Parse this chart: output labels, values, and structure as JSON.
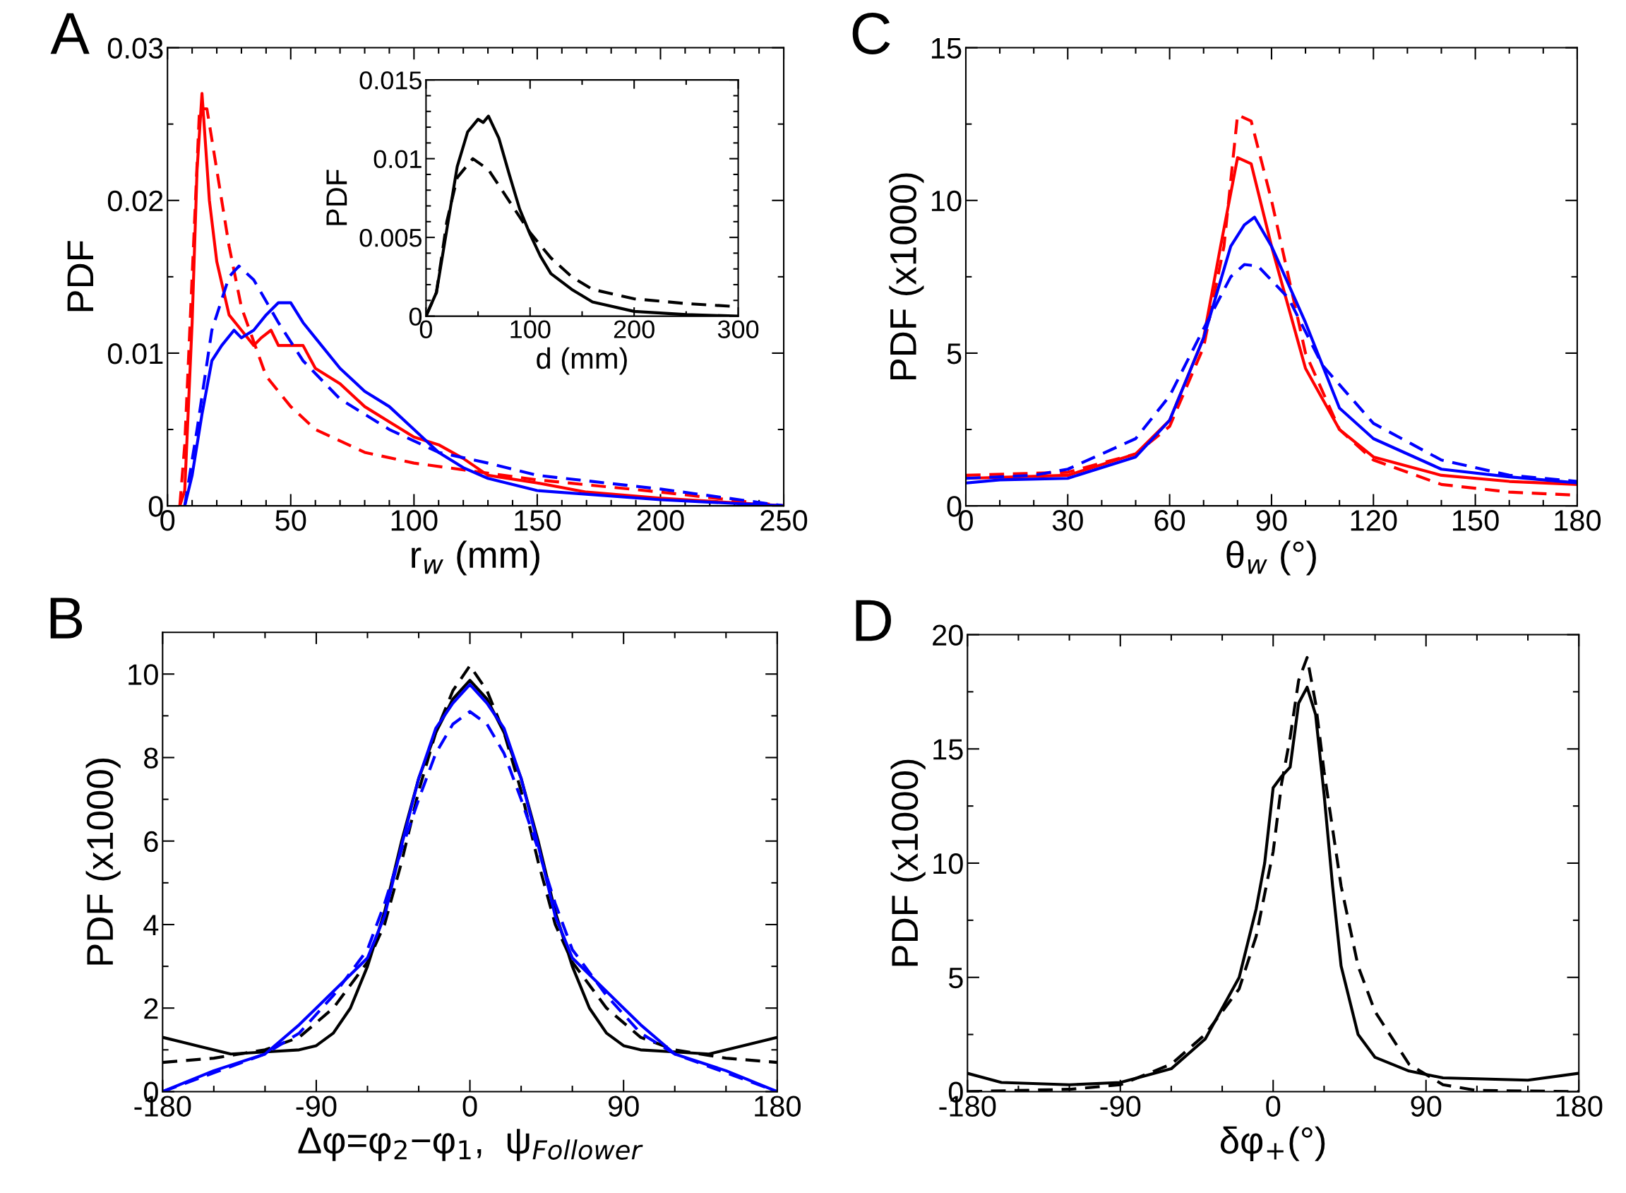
{
  "chart_data": [
    {
      "type": "line",
      "xlabel": "r$_{w}$ (mm)",
      "ylabel": "PDF",
      "annotations": [
        "A"
      ],
      "xlim": [
        0,
        250
      ],
      "ylim": [
        0,
        0.03
      ],
      "xticks": [
        0,
        {
          "value": 10,
          "label": null
        },
        {
          "value": 20,
          "label": null
        },
        {
          "value": 30,
          "label": null
        },
        {
          "value": 40,
          "label": null
        },
        50,
        {
          "value": 60,
          "label": null
        },
        {
          "value": 70,
          "label": null
        },
        {
          "value": 80,
          "label": null
        },
        {
          "value": 90,
          "label": null
        },
        100,
        {
          "value": 110,
          "label": null
        },
        {
          "value": 120,
          "label": null
        },
        {
          "value": 130,
          "label": null
        },
        {
          "value": 140,
          "label": null
        },
        150,
        {
          "value": 160,
          "label": null
        },
        {
          "value": 170,
          "label": null
        },
        {
          "value": 180,
          "label": null
        },
        {
          "value": 190,
          "label": null
        },
        200,
        {
          "value": 210,
          "label": null
        },
        {
          "value": 220,
          "label": null
        },
        {
          "value": 230,
          "label": null
        },
        {
          "value": 240,
          "label": null
        },
        250
      ],
      "yticks": [
        0,
        {
          "value": 0.005,
          "label": null
        },
        0.01,
        {
          "value": 0.015,
          "label": null
        },
        0.02,
        {
          "value": 0.025,
          "label": null
        },
        0.03
      ],
      "series": [
        {
          "color": "#ff0000",
          "line_style": "solid",
          "x": [
            5,
            7,
            10,
            12,
            14,
            17,
            20,
            25,
            30,
            35,
            38,
            42,
            45,
            55,
            60,
            70,
            80,
            90,
            100,
            110,
            120,
            130,
            150,
            170,
            200,
            250
          ],
          "values": [
            0,
            0.001,
            0.012,
            0.022,
            0.027,
            0.02,
            0.016,
            0.0125,
            0.0115,
            0.0105,
            0.011,
            0.0115,
            0.0105,
            0.0105,
            0.009,
            0.008,
            0.0065,
            0.0055,
            0.0045,
            0.004,
            0.0031,
            0.002,
            0.0015,
            0.0009,
            0.0005,
            0
          ]
        },
        {
          "color": "#ff0000",
          "line_style": "dashed",
          "x": [
            5,
            7,
            10,
            13,
            16,
            20,
            25,
            30,
            40,
            50,
            60,
            80,
            100,
            150,
            200,
            250
          ],
          "values": [
            0,
            0.004,
            0.015,
            0.026,
            0.026,
            0.022,
            0.017,
            0.013,
            0.0085,
            0.0065,
            0.005,
            0.0035,
            0.0028,
            0.0017,
            0.0009,
            0
          ]
        },
        {
          "color": "#0000ff",
          "line_style": "solid",
          "x": [
            7,
            10,
            14,
            18,
            22,
            27,
            30,
            35,
            40,
            45,
            50,
            55,
            60,
            70,
            80,
            90,
            100,
            110,
            120,
            130,
            150,
            200,
            250
          ],
          "values": [
            0,
            0.002,
            0.006,
            0.0095,
            0.0105,
            0.0115,
            0.011,
            0.0115,
            0.0125,
            0.0133,
            0.0133,
            0.012,
            0.011,
            0.009,
            0.0075,
            0.0065,
            0.005,
            0.0035,
            0.0025,
            0.0018,
            0.001,
            0.0004,
            0
          ]
        },
        {
          "color": "#0000ff",
          "line_style": "dashed",
          "x": [
            7,
            12,
            18,
            25,
            29,
            35,
            45,
            55,
            70,
            90,
            110,
            130,
            150,
            200,
            250
          ],
          "values": [
            0,
            0.005,
            0.0115,
            0.015,
            0.0157,
            0.0148,
            0.012,
            0.0095,
            0.007,
            0.005,
            0.0035,
            0.0028,
            0.002,
            0.0011,
            0
          ]
        }
      ]
    },
    {
      "type": "line",
      "xlabel": "d (mm)",
      "ylabel": "PDF",
      "xlim": [
        0,
        300
      ],
      "ylim": [
        0,
        0.015
      ],
      "xticks": [
        0,
        {
          "value": 50,
          "label": null
        },
        100,
        {
          "value": 150,
          "label": null
        },
        200,
        {
          "value": 250,
          "label": null
        },
        300
      ],
      "yticks": [
        0,
        {
          "value": 0.001,
          "label": null
        },
        {
          "value": 0.002,
          "label": null
        },
        {
          "value": 0.003,
          "label": null
        },
        {
          "value": 0.004,
          "label": null
        },
        0.005,
        {
          "value": 0.006,
          "label": null
        },
        {
          "value": 0.007,
          "label": null
        },
        {
          "value": 0.008,
          "label": null
        },
        {
          "value": 0.009,
          "label": null
        },
        0.01,
        {
          "value": 0.011,
          "label": null
        },
        {
          "value": 0.012,
          "label": null
        },
        {
          "value": 0.013,
          "label": null
        },
        {
          "value": 0.014,
          "label": null
        },
        0.015
      ],
      "series": [
        {
          "color": "#000000",
          "line_style": "solid",
          "x": [
            0,
            10,
            20,
            30,
            40,
            50,
            55,
            60,
            70,
            80,
            90,
            100,
            110,
            120,
            140,
            160,
            200,
            250,
            300
          ],
          "values": [
            0,
            0.0015,
            0.0055,
            0.0095,
            0.0117,
            0.0125,
            0.0123,
            0.0127,
            0.0113,
            0.009,
            0.0068,
            0.0052,
            0.0038,
            0.0027,
            0.0017,
            0.0009,
            0.0003,
            0.0001,
            0
          ]
        },
        {
          "color": "#000000",
          "line_style": "dashed",
          "x": [
            0,
            10,
            20,
            30,
            45,
            60,
            80,
            100,
            120,
            140,
            160,
            200,
            250,
            300
          ],
          "values": [
            0,
            0.0015,
            0.006,
            0.0088,
            0.01,
            0.0093,
            0.0073,
            0.0053,
            0.0037,
            0.0025,
            0.0017,
            0.0011,
            0.0008,
            0.0006
          ]
        }
      ]
    },
    {
      "type": "line",
      "xlabel": "Δφ=φ$_{2}$−φ$_{1}$,  ψ$_{Follower}$",
      "ylabel": "PDF (x1000)",
      "annotations": [
        "B"
      ],
      "xlim": [
        -180,
        180
      ],
      "ylim": [
        0,
        11
      ],
      "xticks": [
        -180,
        {
          "value": -150,
          "label": null
        },
        {
          "value": -120,
          "label": null
        },
        -90,
        {
          "value": -60,
          "label": null
        },
        {
          "value": -30,
          "label": null
        },
        0,
        {
          "value": 30,
          "label": null
        },
        {
          "value": 60,
          "label": null
        },
        90,
        {
          "value": 120,
          "label": null
        },
        {
          "value": 150,
          "label": null
        },
        180
      ],
      "yticks": [
        0,
        {
          "value": 1,
          "label": null
        },
        2,
        {
          "value": 3,
          "label": null
        },
        4,
        {
          "value": 5,
          "label": null
        },
        6,
        {
          "value": 7,
          "label": null
        },
        8,
        {
          "value": 9,
          "label": null
        },
        10
      ],
      "series": [
        {
          "color": "#000000",
          "line_style": "solid",
          "x": [
            -180,
            -160,
            -140,
            -120,
            -100,
            -90,
            -80,
            -70,
            -60,
            -50,
            -40,
            -30,
            -20,
            -10,
            0,
            10,
            20,
            30,
            40,
            50,
            60,
            70,
            80,
            90,
            100,
            120,
            140,
            160,
            180
          ],
          "values": [
            1.3,
            1.1,
            0.9,
            0.95,
            1.0,
            1.1,
            1.4,
            2.0,
            3.0,
            4.3,
            6.0,
            7.5,
            8.6,
            9.4,
            9.85,
            9.4,
            8.6,
            7.5,
            6.0,
            4.3,
            3.0,
            2.0,
            1.4,
            1.1,
            1.0,
            0.95,
            0.9,
            1.1,
            1.3
          ]
        },
        {
          "color": "#000000",
          "line_style": "dashed",
          "x": [
            -180,
            -150,
            -120,
            -100,
            -80,
            -60,
            -50,
            -40,
            -30,
            -20,
            -10,
            0,
            10,
            20,
            30,
            40,
            50,
            60,
            80,
            100,
            120,
            150,
            180
          ],
          "values": [
            0.7,
            0.8,
            1.0,
            1.3,
            2.0,
            3.1,
            4.0,
            5.5,
            7.2,
            8.6,
            9.6,
            10.2,
            9.6,
            8.6,
            7.2,
            5.5,
            4.0,
            3.1,
            2.0,
            1.3,
            1.0,
            0.8,
            0.7
          ]
        },
        {
          "color": "#0000ff",
          "line_style": "solid",
          "x": [
            -180,
            -150,
            -120,
            -100,
            -90,
            -75,
            -60,
            -50,
            -40,
            -30,
            -20,
            -10,
            0,
            10,
            20,
            30,
            40,
            50,
            60,
            75,
            90,
            100,
            120,
            150,
            180
          ],
          "values": [
            0,
            0.5,
            0.9,
            1.6,
            2.0,
            2.6,
            3.2,
            4.2,
            5.9,
            7.5,
            8.7,
            9.3,
            9.75,
            9.3,
            8.7,
            7.5,
            5.9,
            4.2,
            3.2,
            2.6,
            2.0,
            1.6,
            0.9,
            0.5,
            0
          ]
        },
        {
          "color": "#0000ff",
          "line_style": "dashed",
          "x": [
            -180,
            -150,
            -120,
            -100,
            -80,
            -60,
            -50,
            -40,
            -30,
            -20,
            -10,
            0,
            10,
            20,
            30,
            40,
            50,
            60,
            80,
            100,
            120,
            150,
            180
          ],
          "values": [
            0,
            0.45,
            0.9,
            1.4,
            2.3,
            3.4,
            4.5,
            5.8,
            7.0,
            8.1,
            8.8,
            9.1,
            8.8,
            8.1,
            7.0,
            5.8,
            4.5,
            3.4,
            2.3,
            1.4,
            0.9,
            0.45,
            0
          ]
        }
      ]
    },
    {
      "type": "line",
      "xlabel": "θ$_{w}$ (°)",
      "ylabel": "PDF (x1000)",
      "annotations": [
        "C"
      ],
      "xlim": [
        0,
        180
      ],
      "ylim": [
        0,
        15
      ],
      "xticks": [
        0,
        {
          "value": 10,
          "label": null
        },
        {
          "value": 20,
          "label": null
        },
        30,
        {
          "value": 40,
          "label": null
        },
        {
          "value": 50,
          "label": null
        },
        60,
        {
          "value": 70,
          "label": null
        },
        {
          "value": 80,
          "label": null
        },
        90,
        {
          "value": 100,
          "label": null
        },
        {
          "value": 110,
          "label": null
        },
        120,
        {
          "value": 130,
          "label": null
        },
        {
          "value": 140,
          "label": null
        },
        150,
        {
          "value": 160,
          "label": null
        },
        {
          "value": 170,
          "label": null
        },
        180
      ],
      "yticks": [
        0,
        {
          "value": 2.5,
          "label": null
        },
        5,
        {
          "value": 7.5,
          "label": null
        },
        10,
        {
          "value": 12.5,
          "label": null
        },
        15
      ],
      "series": [
        {
          "color": "#ff0000",
          "line_style": "solid",
          "x": [
            0,
            30,
            50,
            60,
            70,
            75,
            80,
            84,
            90,
            100,
            110,
            120,
            140,
            160,
            180
          ],
          "values": [
            0.9,
            1.0,
            1.7,
            2.8,
            5.5,
            8.5,
            11.4,
            11.2,
            8.5,
            4.5,
            2.5,
            1.6,
            1.0,
            0.8,
            0.7
          ]
        },
        {
          "color": "#ff0000",
          "line_style": "dashed",
          "x": [
            0,
            30,
            50,
            60,
            70,
            76,
            80,
            84,
            90,
            100,
            110,
            120,
            140,
            160,
            180
          ],
          "values": [
            1.0,
            1.1,
            1.7,
            2.6,
            5.2,
            8.5,
            12.8,
            12.6,
            10,
            5.0,
            2.5,
            1.5,
            0.7,
            0.45,
            0.35
          ]
        },
        {
          "color": "#0000ff",
          "line_style": "solid",
          "x": [
            0,
            10,
            30,
            50,
            60,
            70,
            78,
            82,
            85,
            90,
            100,
            110,
            120,
            140,
            160,
            180
          ],
          "values": [
            0.75,
            0.85,
            0.9,
            1.6,
            2.8,
            5.5,
            8.5,
            9.2,
            9.45,
            8.5,
            6.0,
            3.2,
            2.2,
            1.2,
            0.95,
            0.75
          ]
        },
        {
          "color": "#0000ff",
          "line_style": "dashed",
          "x": [
            0,
            20,
            30,
            50,
            60,
            70,
            78,
            82,
            86,
            95,
            105,
            120,
            140,
            160,
            180
          ],
          "values": [
            0.9,
            1.0,
            1.2,
            2.2,
            3.6,
            5.8,
            7.5,
            7.9,
            7.85,
            6.8,
            4.6,
            2.7,
            1.5,
            1.0,
            0.8
          ]
        }
      ]
    },
    {
      "type": "line",
      "xlabel": "δφ$_{+}$(°)",
      "ylabel": "PDF (x1000)",
      "annotations": [
        "D"
      ],
      "xlim": [
        -180,
        180
      ],
      "ylim": [
        0,
        20
      ],
      "xticks": [
        -180,
        {
          "value": -150,
          "label": null
        },
        {
          "value": -120,
          "label": null
        },
        -90,
        {
          "value": -60,
          "label": null
        },
        {
          "value": -30,
          "label": null
        },
        0,
        {
          "value": 30,
          "label": null
        },
        {
          "value": 60,
          "label": null
        },
        90,
        {
          "value": 120,
          "label": null
        },
        {
          "value": 150,
          "label": null
        },
        180
      ],
      "yticks": [
        0,
        {
          "value": 2.5,
          "label": null
        },
        5,
        {
          "value": 7.5,
          "label": null
        },
        10,
        {
          "value": 12.5,
          "label": null
        },
        15,
        {
          "value": 17.5,
          "label": null
        },
        20
      ],
      "series": [
        {
          "color": "#000000",
          "line_style": "solid",
          "x": [
            -180,
            -160,
            -120,
            -90,
            -60,
            -40,
            -20,
            -10,
            -5,
            0,
            5,
            10,
            15,
            20,
            25,
            30,
            35,
            40,
            50,
            60,
            80,
            100,
            150,
            180
          ],
          "values": [
            0.8,
            0.4,
            0.3,
            0.4,
            1.0,
            2.3,
            5.0,
            8.0,
            10,
            13.3,
            13.8,
            14.2,
            17.0,
            17.7,
            16.5,
            13,
            9,
            5.5,
            2.5,
            1.5,
            0.9,
            0.6,
            0.5,
            0.8
          ]
        },
        {
          "color": "#000000",
          "line_style": "dashed",
          "x": [
            -180,
            -120,
            -90,
            -60,
            -40,
            -20,
            -10,
            0,
            5,
            10,
            15,
            20,
            25,
            30,
            40,
            50,
            60,
            80,
            100,
            120,
            180
          ],
          "values": [
            0,
            0.1,
            0.3,
            1.2,
            2.5,
            4.5,
            6.8,
            10.5,
            13.5,
            15.5,
            18.0,
            19.0,
            17.0,
            14,
            9,
            5.5,
            3.5,
            1.2,
            0.3,
            0.05,
            0
          ]
        }
      ]
    }
  ]
}
